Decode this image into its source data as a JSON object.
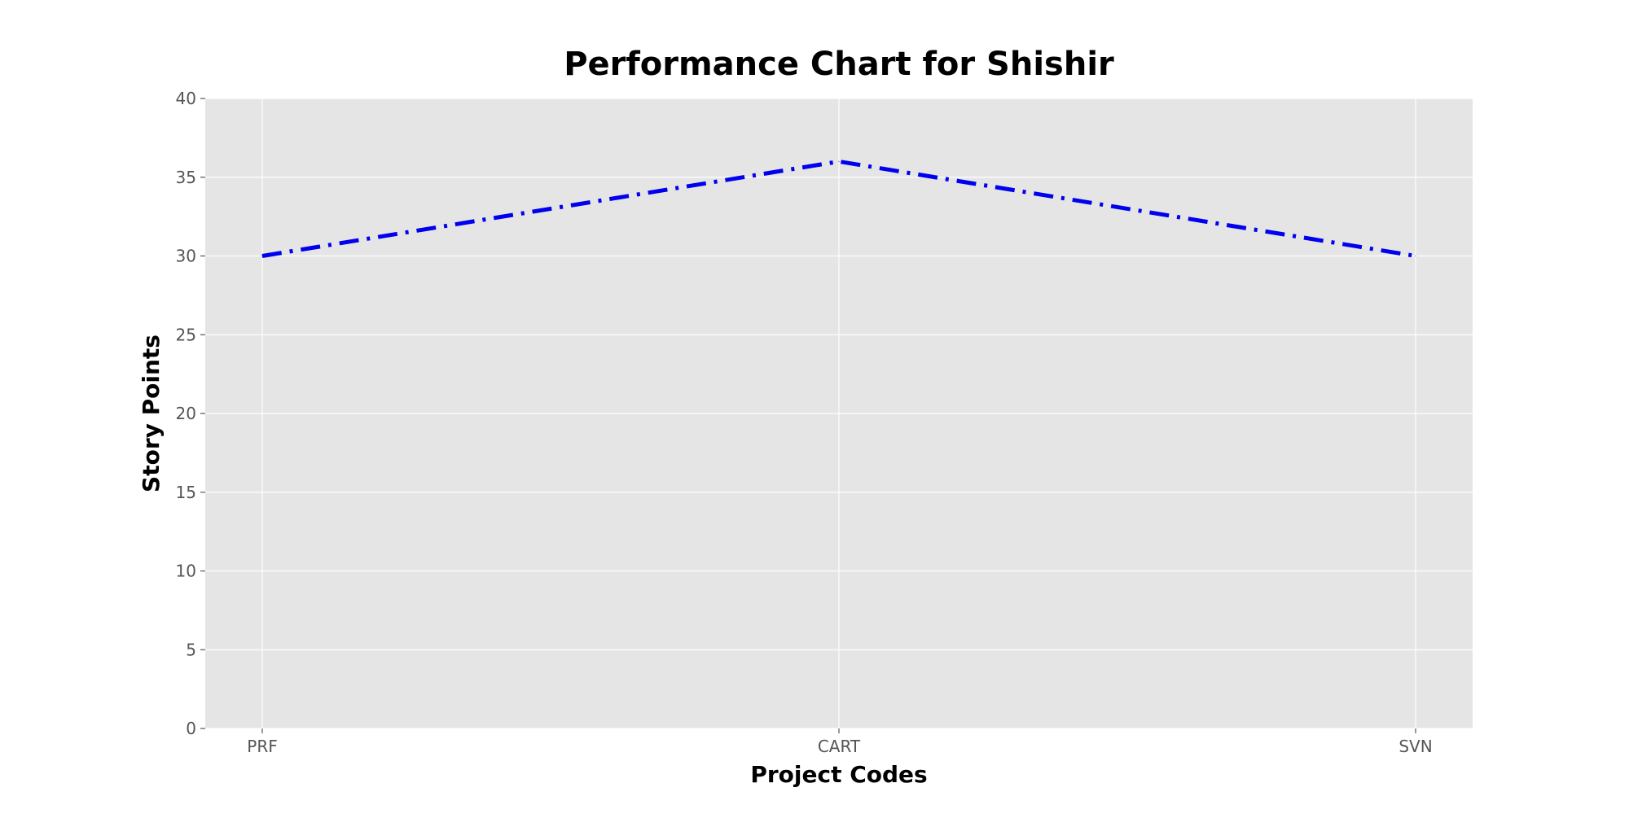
{
  "chart_data": {
    "type": "line",
    "title": "Performance Chart for Shishir",
    "xlabel": "Project Codes",
    "ylabel": "Story Points",
    "categories": [
      "PRF",
      "CART",
      "SVN"
    ],
    "series": [
      {
        "values": [
          30,
          36,
          30
        ],
        "color": "#0000ee",
        "line_style": "dash-dot"
      }
    ],
    "ylim": [
      0,
      40
    ],
    "yticks": [
      0,
      5,
      10,
      15,
      20,
      25,
      30,
      35,
      40
    ],
    "grid": true,
    "plot_background": "#e5e5e5",
    "grid_color": "#ffffff"
  }
}
